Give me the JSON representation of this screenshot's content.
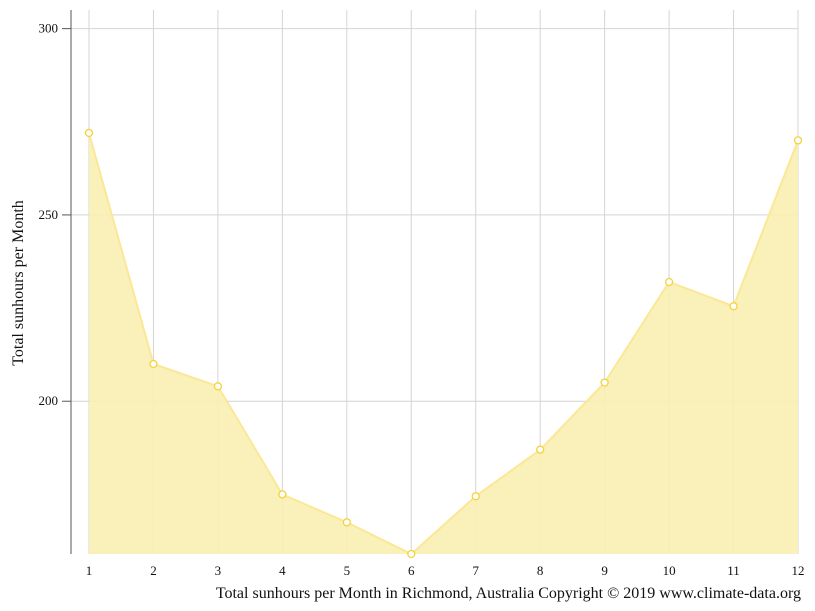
{
  "chart_data": {
    "type": "area",
    "x": [
      1,
      2,
      3,
      4,
      5,
      6,
      7,
      8,
      9,
      10,
      11,
      12
    ],
    "series": [
      {
        "values": [
          272,
          210,
          204,
          175,
          167.5,
          159,
          174.5,
          187,
          205,
          232,
          225.5,
          270
        ],
        "color": "#fbe896"
      }
    ],
    "xlabel": "",
    "ylabel": "Total sunhours per Month",
    "caption": "Total sunhours per Month in Richmond, Australia Copyright © 2019 www.climate-data.org",
    "ylim": [
      159,
      305
    ],
    "yticks": [
      200,
      250,
      300
    ],
    "xticks": [
      1,
      2,
      3,
      4,
      5,
      6,
      7,
      8,
      9,
      10,
      11,
      12
    ],
    "grid": true,
    "colors": {
      "fill": "#faeeb1",
      "line": "#fbe896",
      "marker": "#f5d23a",
      "grid": "#d4d4d4",
      "axis": "#555555"
    }
  }
}
